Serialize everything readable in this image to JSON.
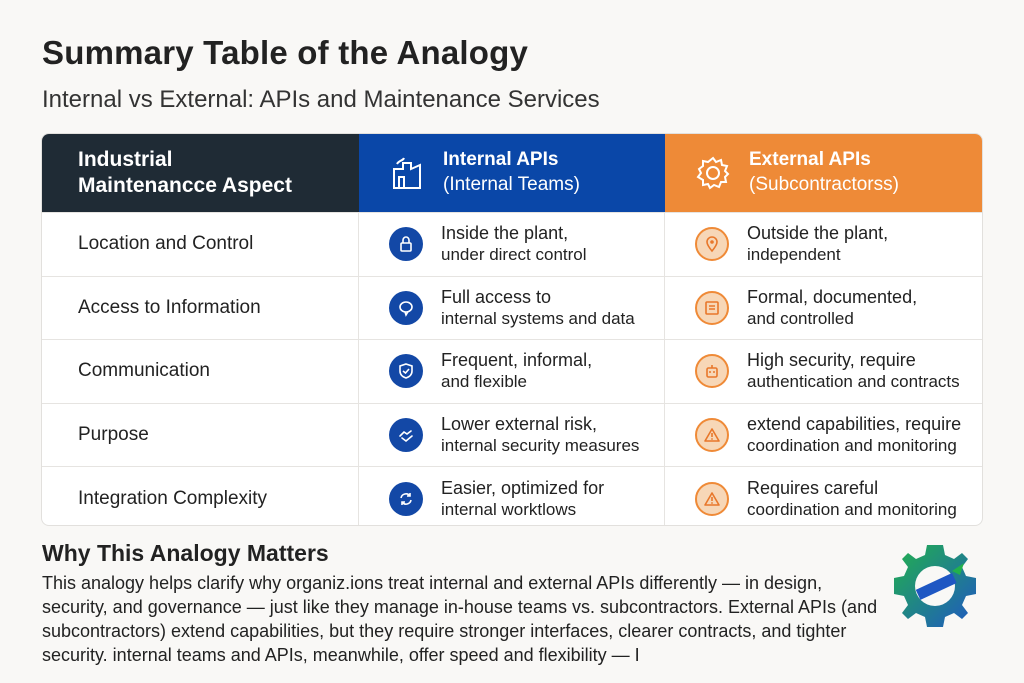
{
  "title": "Summary Table of the Analogy",
  "subtitle": "Internal vs External: APIs and Maintenance Services",
  "table": {
    "headers": {
      "aspect": {
        "line1": "Industrial",
        "line2": "Maintenancce Aspect"
      },
      "internal": {
        "line1": "Internal APIs",
        "line2": "(Internal Teams)",
        "icon": "factory-icon"
      },
      "external": {
        "line1": "External APIs",
        "line2": "(Subcontractorss)",
        "icon": "gear-icon"
      }
    },
    "rows": [
      {
        "aspect": "Location and Control",
        "internal": {
          "l1": "Inside the plant,",
          "l2": "under direct control",
          "icon": "lock-icon"
        },
        "external": {
          "l1": "Outside the plant,",
          "l2": "independent",
          "icon": "location-pin-icon"
        }
      },
      {
        "aspect": "Access to Information",
        "internal": {
          "l1": "Full access to",
          "l2": "internal systems and data",
          "icon": "chat-icon"
        },
        "external": {
          "l1": "Formal, documented,",
          "l2": "and controlled",
          "icon": "document-icon"
        }
      },
      {
        "aspect": "Communication",
        "internal": {
          "l1": "Frequent, informal,",
          "l2": "and flexible",
          "icon": "shield-icon"
        },
        "external": {
          "l1": "High security, require",
          "l2": "authentication and contracts",
          "icon": "robot-icon"
        }
      },
      {
        "aspect": "Purpose",
        "internal": {
          "l1": "Lower external risk,",
          "l2": "internal security measures",
          "icon": "handshake-icon"
        },
        "external": {
          "l1": "extend capabilities, require",
          "l2": "coordination  and monitoring",
          "icon": "warning-icon"
        }
      },
      {
        "aspect": "Integration Complexity",
        "internal": {
          "l1": "Easier, optimized for",
          "l2": "internal worktlows",
          "icon": "sync-icon"
        },
        "external": {
          "l1": "Requires careful",
          "l2": "coordination and monitoring",
          "icon": "warning-icon"
        }
      }
    ]
  },
  "section": {
    "title": "Why This Analogy Matters",
    "paragraph": "This analogy helps clarify why organiz.ions treat internal and external APIs differently — in design, security, and governance — just like they manage in-house teams vs. subcontractors. External APIs (and subcontractors) extend capabilities, but they require stronger interfaces, clearer contracts, and tighter security. internal teams and APIs, meanwhile, offer speed and flexibility — I"
  },
  "colors": {
    "dark": "#1f2b35",
    "internal": "#0a47a8",
    "external": "#ee8a37"
  }
}
